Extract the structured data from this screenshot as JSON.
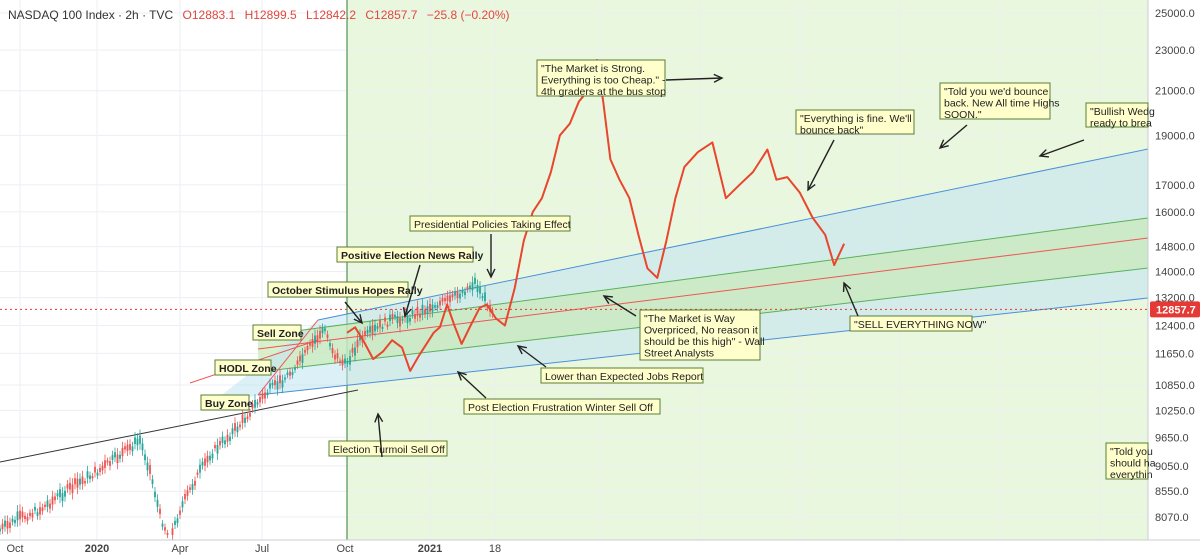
{
  "header": {
    "title": "NASDAQ 100 Index · 2h · TVC",
    "open": "O12883.1",
    "high": "H12899.5",
    "low": "L12842.2",
    "close": "C12857.7",
    "change": "−25.8 (−0.20%)"
  },
  "chart_data": {
    "type": "line",
    "title": "NASDAQ 100 Index · 2h · TVC",
    "y_scale": "log",
    "ylim": [
      7900,
      25500
    ],
    "y_ticks": [
      "25000.0",
      "23000.0",
      "21000.0",
      "19000.0",
      "17000.0",
      "16000.0",
      "14800.0",
      "14000.0",
      "13200.0",
      "12400.0",
      "11650.0",
      "10850.0",
      "10250.0",
      "9650.0",
      "9050.0",
      "8550.0",
      "8070.0"
    ],
    "x_ticks": [
      "Oct",
      "2020",
      "Apr",
      "Jul",
      "Oct",
      "2021",
      "18"
    ],
    "last_price": "12857.7",
    "price_history_candles_end": "approx 12857.7",
    "projection_series": {
      "name": "",
      "points": [
        [
          "2020-10-01",
          12200
        ],
        [
          "2020-10-10",
          12350
        ],
        [
          "2020-10-20",
          11950
        ],
        [
          "2020-10-30",
          11500
        ],
        [
          "2020-11-10",
          11700
        ],
        [
          "2020-11-20",
          12000
        ],
        [
          "2020-12-01",
          11800
        ],
        [
          "2020-12-10",
          11200
        ],
        [
          "2020-12-20",
          11600
        ],
        [
          "2021-01-05",
          12200
        ],
        [
          "2021-01-12",
          12350
        ],
        [
          "2021-01-20",
          13000
        ],
        [
          "2021-01-28",
          12400
        ],
        [
          "2021-02-05",
          11900
        ],
        [
          "2021-02-15",
          12400
        ],
        [
          "2021-02-25",
          12900
        ],
        [
          "2021-03-05",
          13000
        ],
        [
          "2021-03-15",
          12600
        ],
        [
          "2021-03-25",
          12400
        ],
        [
          "2021-04-05",
          13500
        ],
        [
          "2021-04-15",
          15000
        ],
        [
          "2021-04-25",
          16000
        ],
        [
          "2021-05-05",
          16500
        ],
        [
          "2021-05-15",
          17500
        ],
        [
          "2021-05-25",
          19000
        ],
        [
          "2021-06-05",
          19500
        ],
        [
          "2021-06-15",
          20500
        ],
        [
          "2021-06-25",
          21000
        ],
        [
          "2021-07-05",
          22500
        ],
        [
          "2021-07-12",
          20500
        ],
        [
          "2021-07-20",
          18000
        ],
        [
          "2021-07-30",
          17200
        ],
        [
          "2021-08-10",
          16500
        ],
        [
          "2021-08-20",
          15200
        ],
        [
          "2021-08-30",
          14100
        ],
        [
          "2021-09-10",
          13800
        ],
        [
          "2021-09-20",
          15000
        ],
        [
          "2021-09-30",
          16500
        ],
        [
          "2021-10-10",
          17700
        ],
        [
          "2021-10-25",
          18300
        ],
        [
          "2021-11-10",
          18700
        ],
        [
          "2021-11-25",
          16500
        ],
        [
          "2021-12-10",
          17000
        ],
        [
          "2021-12-25",
          17500
        ],
        [
          "2022-01-10",
          18400
        ],
        [
          "2022-01-20",
          17200
        ],
        [
          "2022-02-01",
          17300
        ],
        [
          "2022-02-15",
          16700
        ],
        [
          "2022-03-01",
          15800
        ],
        [
          "2022-03-15",
          15200
        ],
        [
          "2022-03-25",
          14200
        ],
        [
          "2022-04-05",
          14900
        ]
      ]
    },
    "channel": "ascending parallel channel (blue/green/red median bands)"
  },
  "annotations": [
    {
      "id": "october-stimulus",
      "text": "October Stimulus Hopes Rally",
      "bold": true
    },
    {
      "id": "positive-election",
      "text": "Positive Election News Rally",
      "bold": true
    },
    {
      "id": "presidential-policies",
      "text": "Presidential Policies Taking Effect",
      "bold": false
    },
    {
      "id": "sell-zone",
      "text": "Sell Zone",
      "bold": true
    },
    {
      "id": "hodl-zone",
      "text": "HODL Zone",
      "bold": true
    },
    {
      "id": "buy-zone",
      "text": "Buy Zone",
      "bold": true
    },
    {
      "id": "election-turmoil",
      "text": "Election Turmoil Sell Off",
      "bold": false
    },
    {
      "id": "post-election",
      "text": "Post Election Frustration Winter Sell Off",
      "bold": false
    },
    {
      "id": "lower-jobs",
      "text": "Lower than Expected Jobs Report",
      "bold": false
    },
    {
      "id": "overpriced",
      "lines": [
        "\"The Market is Way",
        "Overpriced, No reason it",
        "should be this high\" - Wall",
        "Street Analysts"
      ]
    },
    {
      "id": "market-strong",
      "lines": [
        "\"The Market is Strong.",
        "Everything is too Cheap.\" -",
        "4th graders at the bus stop"
      ]
    },
    {
      "id": "everything-fine",
      "lines": [
        "\"Everything is fine. We'll",
        "bounce back\""
      ]
    },
    {
      "id": "told-bounce",
      "lines": [
        "\"Told you we'd bounce",
        "back. New All time Highs",
        "SOON.\""
      ]
    },
    {
      "id": "bullish-wedge",
      "lines": [
        "\"Bullish Wedg",
        "ready to brea"
      ]
    },
    {
      "id": "sell-everything",
      "text": "\"SELL EVERYTHING NOW\""
    },
    {
      "id": "told-you-should",
      "lines": [
        "\"Told you",
        "should ha",
        "everythin"
      ]
    }
  ]
}
